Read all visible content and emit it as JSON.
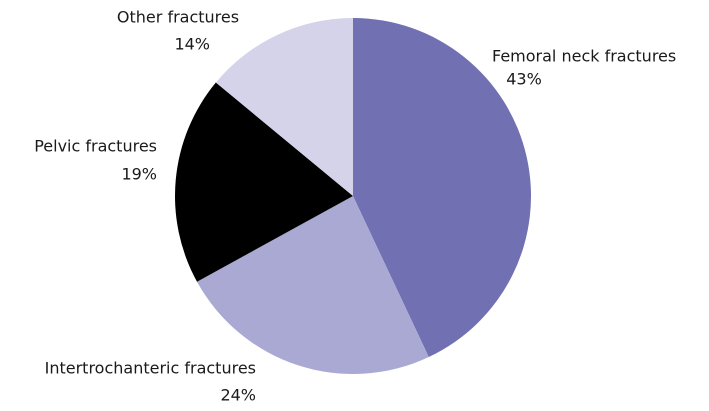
{
  "chart_data": {
    "type": "pie",
    "categories": [
      "Femoral neck fractures",
      "Intertrochanteric fractures",
      "Pelvic fractures",
      "Other fractures"
    ],
    "values": [
      43,
      24,
      19,
      14
    ],
    "value_labels": [
      "43%",
      "24%",
      "19%",
      "14%"
    ],
    "colors": [
      "#7070b2",
      "#a9a9d3",
      "#000000",
      "#d4d3ea"
    ]
  }
}
